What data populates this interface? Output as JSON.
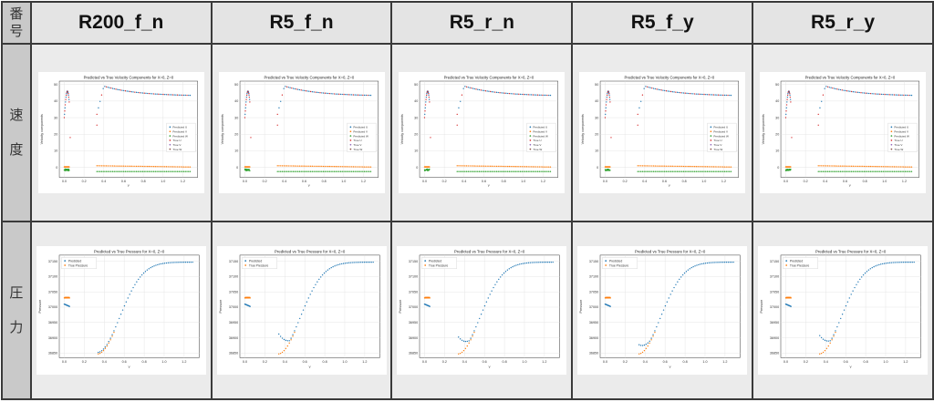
{
  "header": {
    "corner": "番号",
    "columns": [
      "R200_f_n",
      "R5_f_n",
      "R5_r_n",
      "R5_f_y",
      "R5_r_y"
    ]
  },
  "rows": [
    {
      "label": "速度"
    },
    {
      "label": "圧力"
    }
  ],
  "velocity_plot": {
    "title": "Predicted vs True Velocity Components for X=0, Z=0",
    "xlabel": "Y",
    "ylabel": "Velocity components",
    "xticks": [
      "0.0",
      "0.2",
      "0.4",
      "0.6",
      "0.8",
      "1.0",
      "1.2"
    ],
    "yticks": [
      "0",
      "10",
      "20",
      "30",
      "40",
      "50"
    ],
    "legend": [
      "Predicted U",
      "Predicted V",
      "Predicted W",
      "True U",
      "True V",
      "True W"
    ],
    "colors": [
      "#1f77b4",
      "#ff7f0e",
      "#2ca02c",
      "#d62728",
      "#9467bd",
      "#8c564b"
    ]
  },
  "pressure_plot": {
    "title": "Predicted vs True Pressure for X=0, Z=0",
    "xlabel": "Y",
    "ylabel": "Pressure",
    "xticks": [
      "0.0",
      "0.2",
      "0.4",
      "0.6",
      "0.8",
      "1.0",
      "1.2"
    ],
    "yticks": [
      "36850",
      "36900",
      "36950",
      "37000",
      "37050",
      "37100",
      "37150"
    ],
    "legend": [
      "Predicted",
      "True Pressure"
    ],
    "colors": [
      "#1f77b4",
      "#ff7f0e"
    ]
  },
  "pressure_offsets": [
    0,
    60,
    50,
    25,
    55
  ]
}
